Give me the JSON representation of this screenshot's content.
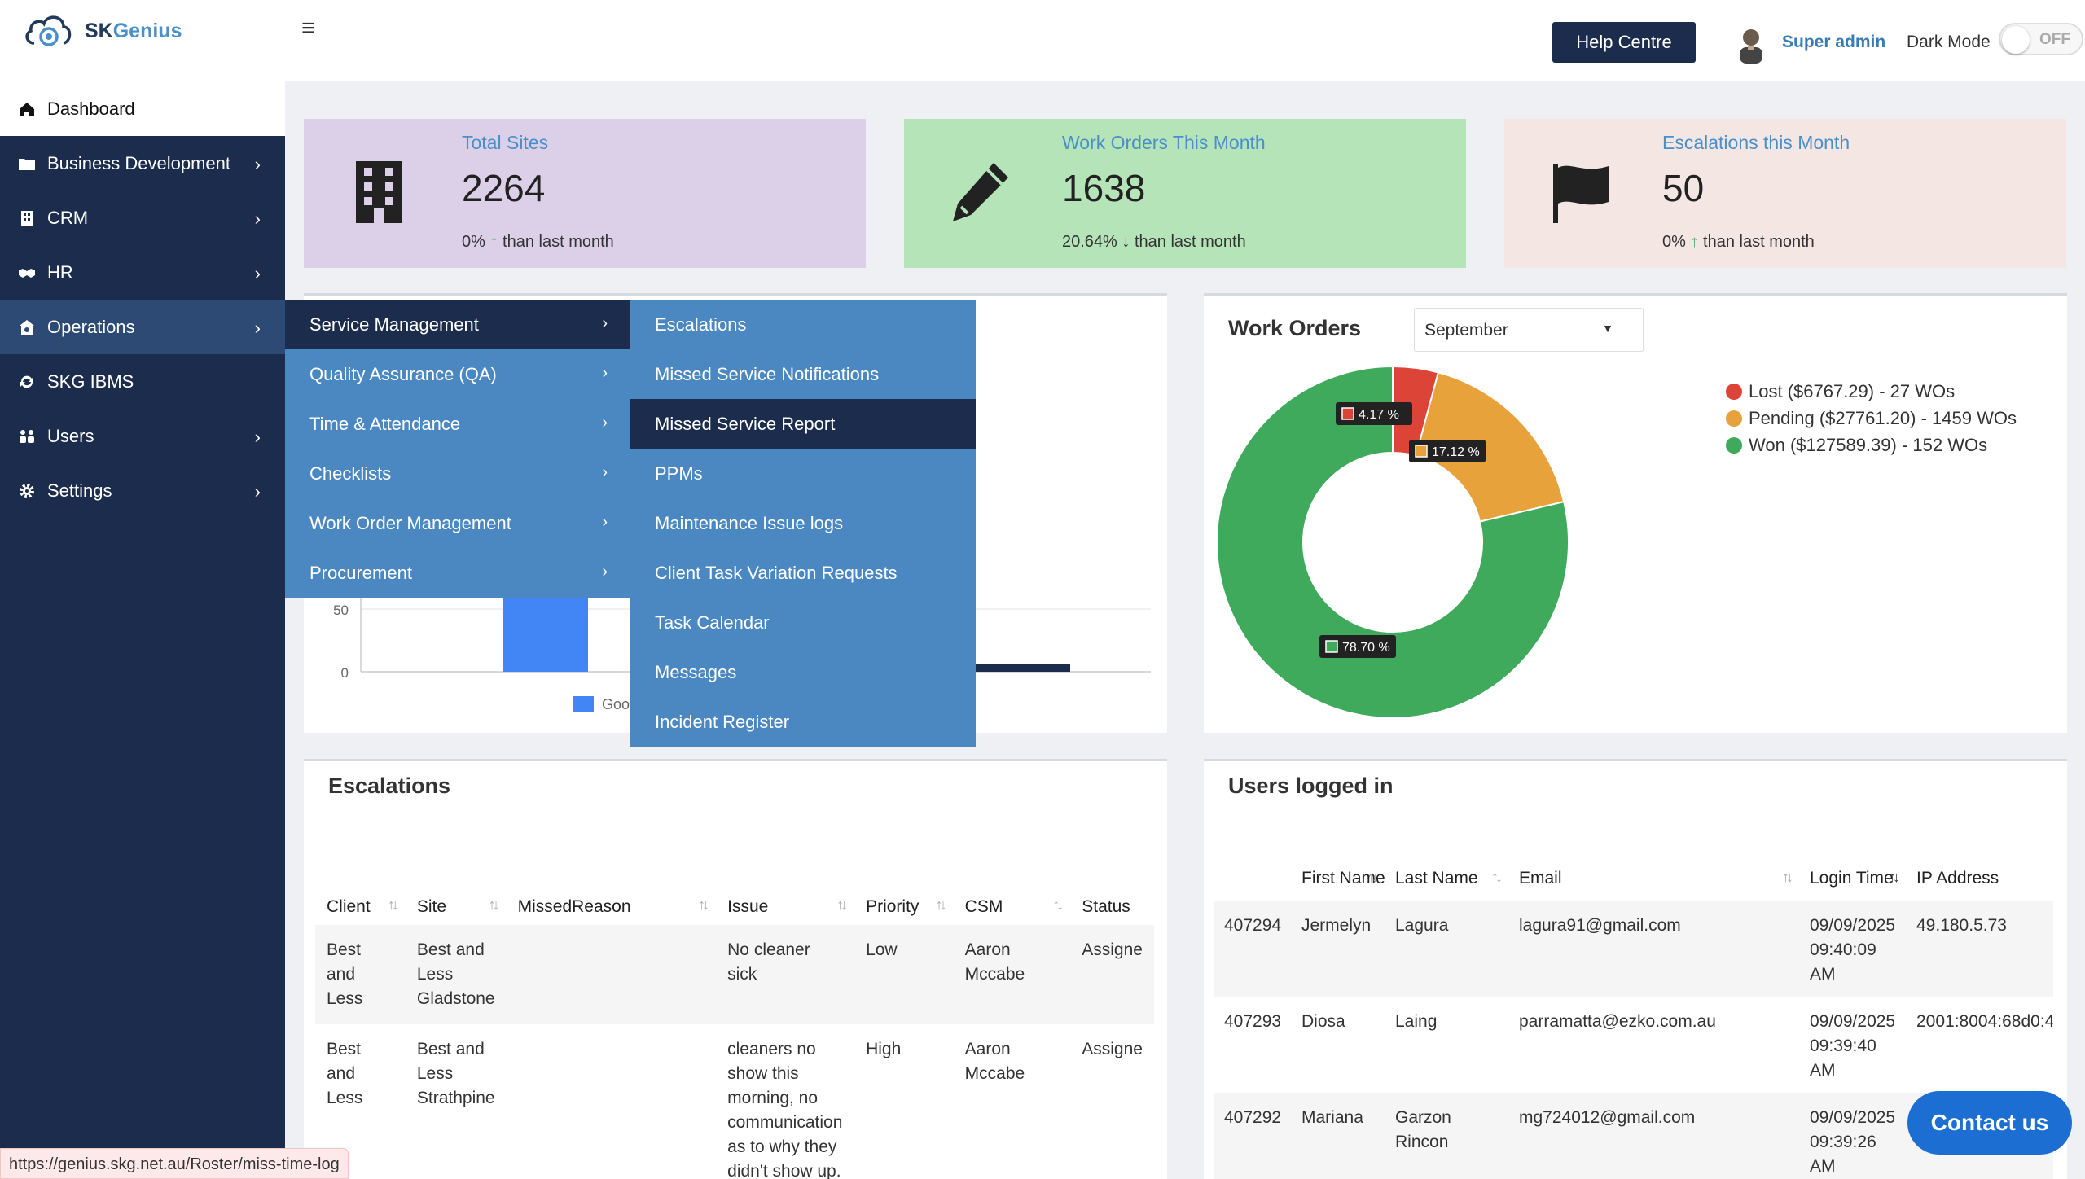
{
  "header": {
    "brand_sk": "SK",
    "brand_genius": "Genius",
    "help_label": "Help Centre",
    "user_name": "Super admin",
    "dark_mode_label": "Dark Mode",
    "toggle_state": "OFF"
  },
  "sidebar": {
    "items": [
      {
        "label": "Dashboard",
        "icon": "home-icon",
        "has_children": false
      },
      {
        "label": "Business Development",
        "icon": "folder-icon",
        "has_children": true
      },
      {
        "label": "CRM",
        "icon": "building-icon",
        "has_children": true
      },
      {
        "label": "HR",
        "icon": "handshake-icon",
        "has_children": true
      },
      {
        "label": "Operations",
        "icon": "operations-icon",
        "has_children": true
      },
      {
        "label": "SKG IBMS",
        "icon": "refresh-icon",
        "has_children": false
      },
      {
        "label": "Users",
        "icon": "users-icon",
        "has_children": true
      },
      {
        "label": "Settings",
        "icon": "gear-icon",
        "has_children": true
      }
    ]
  },
  "stats": [
    {
      "label": "Total Sites",
      "value": "2264",
      "change": "0%",
      "direction": "up",
      "suffix": "than last month",
      "bg": "#dcd0e8"
    },
    {
      "label": "Work Orders This Month",
      "value": "1638",
      "change": "20.64%",
      "direction": "down",
      "suffix": "than last month",
      "bg": "#b5e4b9"
    },
    {
      "label": "Escalations this Month",
      "value": "50",
      "change": "0%",
      "direction": "up",
      "suffix": "than last month",
      "bg": "#f3e6e3"
    }
  ],
  "bar_chart": {
    "ytick_50": "50",
    "ytick_0": "0",
    "legend_partial": "Goo"
  },
  "menu_level1": [
    {
      "label": "Service Management",
      "active": true
    },
    {
      "label": "Quality Assurance (QA)",
      "active": false
    },
    {
      "label": "Time & Attendance",
      "active": false
    },
    {
      "label": "Checklists",
      "active": false
    },
    {
      "label": "Work Order Management",
      "active": false
    },
    {
      "label": "Procurement",
      "active": false
    }
  ],
  "menu_level2": [
    {
      "label": "Escalations",
      "active": false
    },
    {
      "label": "Missed Service Notifications",
      "active": false
    },
    {
      "label": "Missed Service Report",
      "active": true
    },
    {
      "label": "PPMs",
      "active": false
    },
    {
      "label": "Maintenance Issue logs",
      "active": false
    },
    {
      "label": "Client Task Variation Requests",
      "active": false
    },
    {
      "label": "Task Calendar",
      "active": false
    },
    {
      "label": "Messages",
      "active": false
    },
    {
      "label": "Incident Register",
      "active": false
    }
  ],
  "work_orders": {
    "title": "Work Orders",
    "month": "September"
  },
  "chart_data": {
    "type": "pie",
    "donut": true,
    "categories": [
      "Lost",
      "Pending",
      "Won"
    ],
    "values": [
      4.17,
      17.12,
      78.7
    ],
    "labels": [
      "4.17 %",
      "17.12 %",
      "78.70 %"
    ],
    "legend": [
      "Lost ($6767.29) - 27 WOs",
      "Pending ($27761.20) - 1459 WOs",
      "Won ($127589.39) - 152 WOs"
    ],
    "colors": [
      "#db4437",
      "#e8a23c",
      "#3faa5b"
    ],
    "legend_position": "right"
  },
  "escalations": {
    "title": "Escalations",
    "columns": [
      "Client",
      "Site",
      "MissedReason",
      "Issue",
      "Priority",
      "CSM",
      "Status"
    ],
    "rows": [
      [
        "Best and Less",
        "Best and Less Gladstone",
        "",
        "No cleaner sick",
        "Low",
        "Aaron Mccabe",
        "Assigne"
      ],
      [
        "Best and Less",
        "Best and Less Strathpine",
        "",
        "cleaners no show this morning, no communication as to why they didn't show up.",
        "High",
        "Aaron Mccabe",
        "Assigne"
      ]
    ]
  },
  "users_logged": {
    "title": "Users logged in",
    "columns": [
      "",
      "First Name",
      "Last Name",
      "Email",
      "Login Time",
      "IP Address"
    ],
    "rows": [
      [
        "407294",
        "Jermelyn",
        "Lagura",
        "lagura91@gmail.com",
        "09/09/2025 09:40:09 AM",
        "49.180.5.73"
      ],
      [
        "407293",
        "Diosa",
        "Laing",
        "parramatta@ezko.com.au",
        "09/09/2025 09:39:40 AM",
        "2001:8004:68d0:4"
      ],
      [
        "407292",
        "Mariana",
        "Garzon Rincon",
        "mg724012@gmail.com",
        "09/09/2025 09:39:26 AM",
        ""
      ]
    ]
  },
  "status_url": "https://genius.skg.net.au/Roster/miss-time-log",
  "contact_label": "Contact us"
}
